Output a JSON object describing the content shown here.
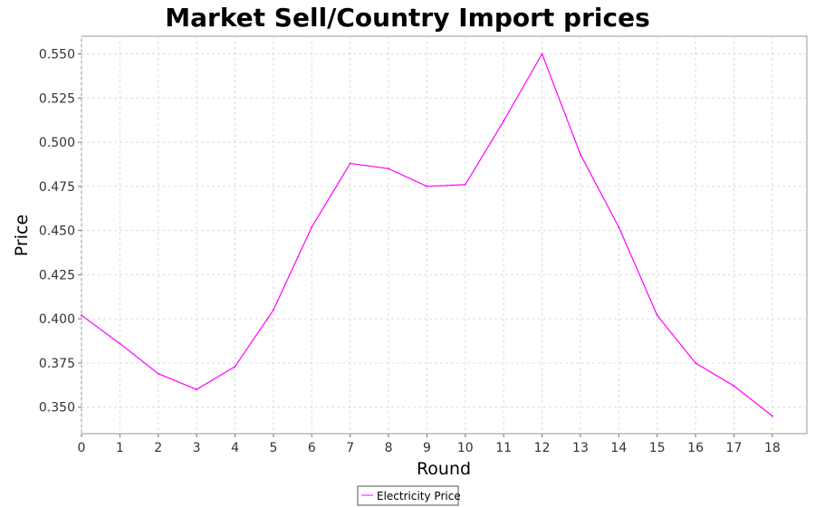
{
  "chart_data": {
    "type": "line",
    "title": "Market Sell/Country Import prices",
    "xlabel": "Round",
    "ylabel": "Price",
    "xlim": [
      0,
      18.9
    ],
    "ylim": [
      0.335,
      0.56
    ],
    "x_ticks": [
      "0",
      "1",
      "2",
      "3",
      "4",
      "5",
      "6",
      "7",
      "8",
      "9",
      "10",
      "11",
      "12",
      "13",
      "14",
      "15",
      "16",
      "17",
      "18"
    ],
    "y_ticks": [
      "0.350",
      "0.375",
      "0.400",
      "0.425",
      "0.450",
      "0.475",
      "0.500",
      "0.525",
      "0.550"
    ],
    "grid": true,
    "legend_position": "bottom-center",
    "series": [
      {
        "name": "Electricity Price",
        "color": "#ff00ff",
        "x": [
          0,
          1,
          2,
          3,
          4,
          5,
          6,
          7,
          8,
          9,
          10,
          11,
          12,
          13,
          14,
          15,
          16,
          17,
          18
        ],
        "y": [
          0.402,
          0.386,
          0.369,
          0.36,
          0.373,
          0.405,
          0.452,
          0.488,
          0.485,
          0.475,
          0.476,
          0.512,
          0.55,
          0.493,
          0.452,
          0.402,
          0.375,
          0.362,
          0.345
        ]
      }
    ]
  }
}
